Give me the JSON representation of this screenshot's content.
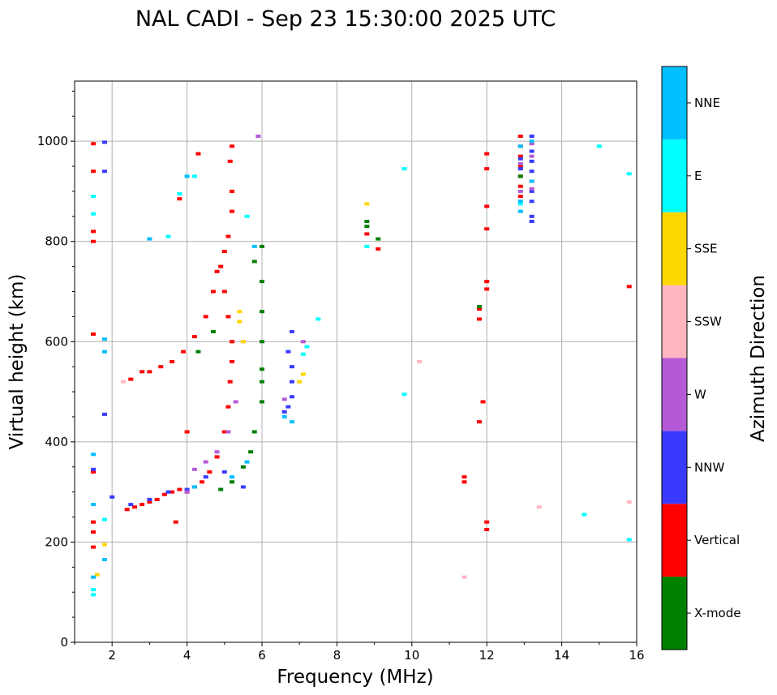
{
  "chart_data": {
    "type": "scatter",
    "title": "NAL CADI - Sep 23 15:30:00 2025 UTC",
    "xlabel": "Frequency (MHz)",
    "ylabel": "Virtual height (km)",
    "xlim": [
      1,
      16
    ],
    "ylim": [
      0,
      1120
    ],
    "x_ticks": [
      2,
      4,
      6,
      8,
      10,
      12,
      14,
      16
    ],
    "y_ticks": [
      0,
      200,
      400,
      600,
      800,
      1000
    ],
    "grid": true,
    "colorbar": {
      "label": "Azimuth Direction",
      "categories": [
        "X-mode",
        "Vertical",
        "NNW",
        "W",
        "SSW",
        "SSE",
        "E",
        "NNE"
      ],
      "colors": {
        "X-mode": "#008000",
        "Vertical": "#ff0000",
        "NNW": "#3a3aff",
        "W": "#b45ad6",
        "SSW": "#ffb6c1",
        "SSE": "#ffd700",
        "E": "#00ffff",
        "NNE": "#00bfff"
      }
    },
    "series": [
      {
        "name": "Vertical",
        "points": [
          [
            1.5,
            995
          ],
          [
            1.5,
            940
          ],
          [
            1.5,
            820
          ],
          [
            1.5,
            800
          ],
          [
            1.5,
            615
          ],
          [
            1.5,
            340
          ],
          [
            1.5,
            240
          ],
          [
            1.5,
            220
          ],
          [
            1.5,
            190
          ],
          [
            2.4,
            265
          ],
          [
            2.6,
            270
          ],
          [
            2.8,
            275
          ],
          [
            3.0,
            280
          ],
          [
            3.2,
            285
          ],
          [
            3.4,
            295
          ],
          [
            3.6,
            300
          ],
          [
            3.8,
            305
          ],
          [
            4.0,
            300
          ],
          [
            4.2,
            310
          ],
          [
            4.4,
            320
          ],
          [
            4.6,
            340
          ],
          [
            4.8,
            370
          ],
          [
            5.0,
            420
          ],
          [
            5.1,
            470
          ],
          [
            5.15,
            520
          ],
          [
            5.2,
            560
          ],
          [
            5.2,
            600
          ],
          [
            5.1,
            650
          ],
          [
            5.0,
            700
          ],
          [
            4.9,
            750
          ],
          [
            5.0,
            780
          ],
          [
            5.1,
            810
          ],
          [
            5.2,
            860
          ],
          [
            5.2,
            900
          ],
          [
            5.15,
            960
          ],
          [
            5.2,
            990
          ],
          [
            2.5,
            525
          ],
          [
            2.8,
            540
          ],
          [
            3.0,
            540
          ],
          [
            3.3,
            550
          ],
          [
            3.6,
            560
          ],
          [
            3.9,
            580
          ],
          [
            4.2,
            610
          ],
          [
            4.5,
            650
          ],
          [
            4.7,
            700
          ],
          [
            4.8,
            740
          ],
          [
            3.8,
            885
          ],
          [
            4.3,
            975
          ],
          [
            4.0,
            420
          ],
          [
            3.7,
            240
          ],
          [
            12.0,
            975
          ],
          [
            12.0,
            945
          ],
          [
            12.0,
            870
          ],
          [
            12.0,
            825
          ],
          [
            12.0,
            720
          ],
          [
            12.0,
            705
          ],
          [
            11.8,
            665
          ],
          [
            11.8,
            645
          ],
          [
            11.8,
            440
          ],
          [
            11.9,
            480
          ],
          [
            11.4,
            320
          ],
          [
            11.4,
            330
          ],
          [
            12.0,
            240
          ],
          [
            12.0,
            225
          ],
          [
            12.9,
            1010
          ],
          [
            12.9,
            990
          ],
          [
            12.9,
            970
          ],
          [
            12.9,
            950
          ],
          [
            12.9,
            930
          ],
          [
            12.9,
            910
          ],
          [
            12.9,
            890
          ],
          [
            8.8,
            815
          ],
          [
            9.1,
            785
          ],
          [
            15.8,
            710
          ]
        ]
      },
      {
        "name": "X-mode",
        "points": [
          [
            4.9,
            305
          ],
          [
            5.2,
            320
          ],
          [
            5.5,
            350
          ],
          [
            5.7,
            380
          ],
          [
            5.8,
            420
          ],
          [
            6.0,
            480
          ],
          [
            6.0,
            520
          ],
          [
            6.0,
            545
          ],
          [
            6.0,
            600
          ],
          [
            6.0,
            660
          ],
          [
            6.0,
            720
          ],
          [
            6.0,
            790
          ],
          [
            5.8,
            760
          ],
          [
            4.7,
            620
          ],
          [
            4.3,
            580
          ],
          [
            8.8,
            840
          ],
          [
            8.8,
            830
          ],
          [
            9.1,
            805
          ],
          [
            11.8,
            670
          ],
          [
            12.9,
            930
          ]
        ]
      },
      {
        "name": "NNW",
        "points": [
          [
            1.5,
            345
          ],
          [
            1.8,
            998
          ],
          [
            1.8,
            940
          ],
          [
            1.8,
            455
          ],
          [
            2.0,
            290
          ],
          [
            2.5,
            275
          ],
          [
            3.0,
            285
          ],
          [
            3.5,
            300
          ],
          [
            4.0,
            305
          ],
          [
            4.5,
            330
          ],
          [
            5.0,
            340
          ],
          [
            5.5,
            310
          ],
          [
            6.6,
            460
          ],
          [
            6.7,
            470
          ],
          [
            6.8,
            490
          ],
          [
            6.8,
            520
          ],
          [
            6.8,
            550
          ],
          [
            6.7,
            580
          ],
          [
            6.8,
            620
          ],
          [
            13.2,
            1010
          ],
          [
            13.2,
            980
          ],
          [
            13.2,
            960
          ],
          [
            13.2,
            940
          ],
          [
            13.2,
            900
          ],
          [
            13.2,
            880
          ],
          [
            13.2,
            850
          ],
          [
            13.2,
            840
          ],
          [
            12.9,
            965
          ],
          [
            12.9,
            945
          ]
        ]
      },
      {
        "name": "W",
        "points": [
          [
            4.0,
            300
          ],
          [
            4.2,
            345
          ],
          [
            4.5,
            360
          ],
          [
            4.8,
            380
          ],
          [
            5.1,
            420
          ],
          [
            5.3,
            480
          ],
          [
            5.5,
            600
          ],
          [
            5.9,
            1010
          ],
          [
            6.6,
            485
          ],
          [
            13.2,
            995
          ],
          [
            13.2,
            970
          ],
          [
            13.2,
            920
          ],
          [
            13.2,
            905
          ],
          [
            12.9,
            955
          ],
          [
            12.9,
            900
          ],
          [
            7.1,
            600
          ]
        ]
      },
      {
        "name": "SSW",
        "points": [
          [
            2.3,
            520
          ],
          [
            10.2,
            560
          ],
          [
            11.4,
            130
          ],
          [
            13.4,
            270
          ],
          [
            15.8,
            280
          ]
        ]
      },
      {
        "name": "SSE",
        "points": [
          [
            5.4,
            660
          ],
          [
            5.4,
            640
          ],
          [
            5.5,
            600
          ],
          [
            7.0,
            520
          ],
          [
            7.1,
            535
          ],
          [
            8.8,
            875
          ],
          [
            1.8,
            195
          ],
          [
            1.6,
            135
          ]
        ]
      },
      {
        "name": "E",
        "points": [
          [
            1.5,
            890
          ],
          [
            1.5,
            855
          ],
          [
            1.5,
            105
          ],
          [
            1.5,
            95
          ],
          [
            1.8,
            245
          ],
          [
            3.5,
            810
          ],
          [
            3.8,
            895
          ],
          [
            4.2,
            930
          ],
          [
            5.6,
            850
          ],
          [
            7.5,
            645
          ],
          [
            7.2,
            590
          ],
          [
            7.1,
            575
          ],
          [
            9.8,
            945
          ],
          [
            9.8,
            495
          ],
          [
            8.8,
            790
          ],
          [
            12.9,
            875
          ],
          [
            14.6,
            255
          ],
          [
            15.0,
            990
          ],
          [
            15.8,
            205
          ],
          [
            15.8,
            935
          ]
        ]
      },
      {
        "name": "NNE",
        "points": [
          [
            1.5,
            375
          ],
          [
            1.5,
            275
          ],
          [
            1.5,
            130
          ],
          [
            1.8,
            605
          ],
          [
            1.8,
            580
          ],
          [
            1.8,
            165
          ],
          [
            3.0,
            805
          ],
          [
            4.0,
            930
          ],
          [
            4.2,
            310
          ],
          [
            5.2,
            330
          ],
          [
            5.6,
            360
          ],
          [
            5.8,
            790
          ],
          [
            6.6,
            450
          ],
          [
            6.8,
            440
          ],
          [
            12.9,
            990
          ],
          [
            12.9,
            860
          ],
          [
            12.9,
            880
          ],
          [
            13.2,
            1000
          ],
          [
            13.2,
            920
          ]
        ]
      }
    ]
  }
}
